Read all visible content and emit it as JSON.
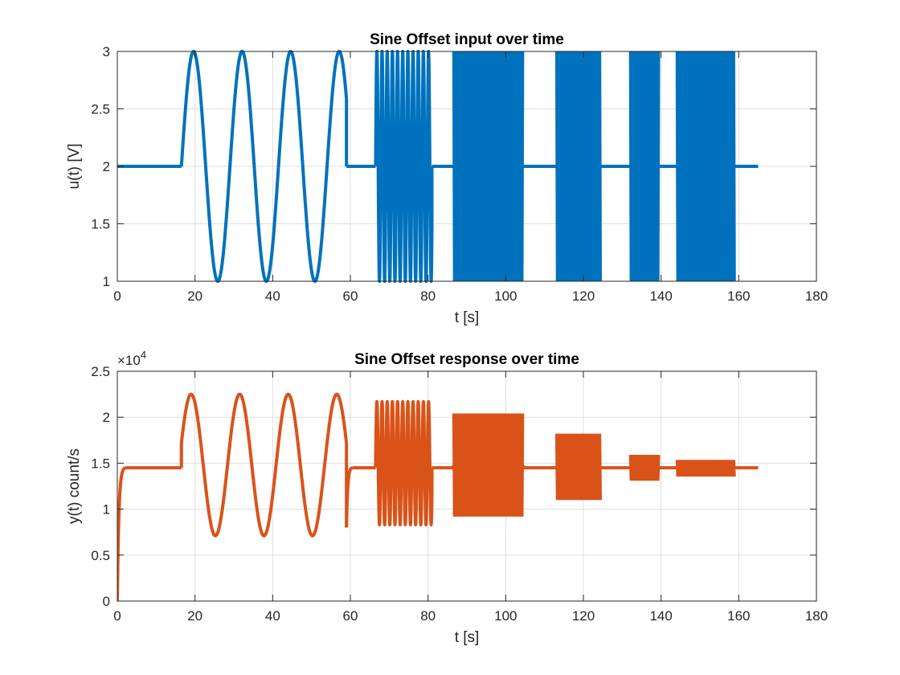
{
  "chart_data": [
    {
      "type": "line",
      "title": "Sine Offset input over time",
      "xlabel": "t [s]",
      "ylabel": "u(t) [V]",
      "xlim": [
        0,
        180
      ],
      "ylim": [
        1,
        3
      ],
      "xticks": [
        0,
        20,
        40,
        60,
        80,
        100,
        120,
        140,
        160,
        180
      ],
      "yticks": [
        1,
        1.5,
        2,
        2.5,
        3
      ],
      "xtick_labels": [
        "0",
        "20",
        "40",
        "60",
        "80",
        "100",
        "120",
        "140",
        "160",
        "180"
      ],
      "ytick_labels": [
        "1",
        "1.5",
        "2",
        "2.5",
        "3"
      ],
      "grid": true,
      "color": "#0072BD",
      "series": [
        {
          "segments": [
            {
              "kind": "const",
              "t0": 0,
              "t1": 16.5,
              "level": 2
            },
            {
              "kind": "sine",
              "t0": 16.5,
              "t1": 59,
              "offset": 2,
              "amplitude": 1,
              "period": 12.5,
              "phase_start": 0
            },
            {
              "kind": "const",
              "t0": 59,
              "t1": 66.5,
              "level": 2
            },
            {
              "kind": "sine",
              "t0": 66.5,
              "t1": 81,
              "offset": 2,
              "amplitude": 1,
              "period": 1.33,
              "phase_start": 0
            },
            {
              "kind": "const",
              "t0": 81,
              "t1": 86.5,
              "level": 2
            },
            {
              "kind": "band",
              "t0": 86.5,
              "t1": 104.5,
              "center": 2,
              "amplitude": 1,
              "cycles": 70
            },
            {
              "kind": "const",
              "t0": 104.5,
              "t1": 113,
              "level": 2
            },
            {
              "kind": "band",
              "t0": 113,
              "t1": 124.5,
              "center": 2,
              "amplitude": 1,
              "cycles": 80
            },
            {
              "kind": "const",
              "t0": 124.5,
              "t1": 132,
              "level": 2
            },
            {
              "kind": "band",
              "t0": 132,
              "t1": 139.5,
              "center": 2,
              "amplitude": 1,
              "cycles": 80
            },
            {
              "kind": "const",
              "t0": 139.5,
              "t1": 144,
              "level": 2
            },
            {
              "kind": "band",
              "t0": 144,
              "t1": 159,
              "center": 2,
              "amplitude": 1,
              "cycles": 150
            },
            {
              "kind": "const",
              "t0": 159,
              "t1": 165,
              "level": 2
            }
          ]
        }
      ]
    },
    {
      "type": "line",
      "title": "Sine Offset response over time",
      "xlabel": "t [s]",
      "ylabel": "y(t) count/s",
      "xlim": [
        0,
        180
      ],
      "ylim": [
        0,
        2.5
      ],
      "y_exponent_label": "×10",
      "y_exponent_power": "4",
      "xticks": [
        0,
        20,
        40,
        60,
        80,
        100,
        120,
        140,
        160,
        180
      ],
      "yticks": [
        0,
        0.5,
        1,
        1.5,
        2,
        2.5
      ],
      "xtick_labels": [
        "0",
        "20",
        "40",
        "60",
        "80",
        "100",
        "120",
        "140",
        "160",
        "180"
      ],
      "ytick_labels": [
        "0",
        "0.5",
        "1",
        "1.5",
        "2",
        "2.5"
      ],
      "grid": true,
      "color": "#D95319",
      "series": [
        {
          "segments": [
            {
              "kind": "rise",
              "t0": 0,
              "t1": 2,
              "from": 0,
              "to": 1.45
            },
            {
              "kind": "const",
              "t0": 2,
              "t1": 16.5,
              "level": 1.45
            },
            {
              "kind": "sine",
              "t0": 16.5,
              "t1": 59,
              "offset": 1.48,
              "amplitude": 0.77,
              "period": 12.5,
              "phase_start": 0.05
            },
            {
              "kind": "rise",
              "t0": 59,
              "t1": 60.5,
              "from": 0.8,
              "to": 1.45
            },
            {
              "kind": "const",
              "t0": 60.5,
              "t1": 66.5,
              "level": 1.45
            },
            {
              "kind": "sine",
              "t0": 66.5,
              "t1": 81,
              "offset": 1.5,
              "amplitude": 0.67,
              "period": 1.33,
              "phase_start": 0
            },
            {
              "kind": "const",
              "t0": 81,
              "t1": 86.5,
              "level": 1.45
            },
            {
              "kind": "band",
              "t0": 86.5,
              "t1": 104.5,
              "center": 1.48,
              "amplitude": 0.56,
              "cycles": 70
            },
            {
              "kind": "const",
              "t0": 104.5,
              "t1": 113,
              "level": 1.45
            },
            {
              "kind": "band",
              "t0": 113,
              "t1": 124.5,
              "center": 1.46,
              "amplitude": 0.36,
              "cycles": 80
            },
            {
              "kind": "const",
              "t0": 124.5,
              "t1": 132,
              "level": 1.45
            },
            {
              "kind": "band",
              "t0": 132,
              "t1": 139.5,
              "center": 1.45,
              "amplitude": 0.14,
              "cycles": 80
            },
            {
              "kind": "const",
              "t0": 139.5,
              "t1": 144,
              "level": 1.45
            },
            {
              "kind": "band",
              "t0": 144,
              "t1": 159,
              "center": 1.445,
              "amplitude": 0.09,
              "cycles": 150
            },
            {
              "kind": "const",
              "t0": 159,
              "t1": 165,
              "level": 1.45
            }
          ]
        }
      ]
    }
  ]
}
